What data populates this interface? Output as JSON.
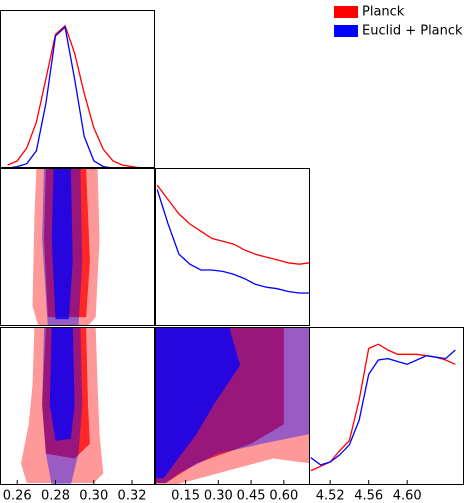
{
  "chart_data": [
    {
      "type": "line",
      "xlim": [
        0.251,
        0.332
      ],
      "ylim": [
        0,
        1.1
      ],
      "series": [
        {
          "name": "Planck",
          "color": "#ff0000",
          "x": [
            0.255,
            0.26,
            0.265,
            0.27,
            0.275,
            0.28,
            0.285,
            0.29,
            0.295,
            0.3,
            0.305,
            0.31,
            0.315,
            0.32,
            0.325,
            0.33
          ],
          "values": [
            0.02,
            0.05,
            0.14,
            0.32,
            0.62,
            0.93,
            0.99,
            0.8,
            0.52,
            0.28,
            0.13,
            0.05,
            0.02,
            0.01,
            0,
            0
          ]
        },
        {
          "name": "Euclid + Planck",
          "color": "#0000ff",
          "x": [
            0.255,
            0.26,
            0.265,
            0.27,
            0.275,
            0.28,
            0.285,
            0.29,
            0.295,
            0.3,
            0.305,
            0.31,
            0.315,
            0.32,
            0.325,
            0.33
          ],
          "values": [
            0,
            0.01,
            0.03,
            0.12,
            0.45,
            0.92,
            0.98,
            0.62,
            0.22,
            0.05,
            0.01,
            0,
            0,
            0,
            0,
            0
          ]
        }
      ]
    },
    {
      "type": "contour",
      "xlim": [
        0.251,
        0.332
      ],
      "ylim": [
        0.01,
        0.72
      ],
      "series": [
        {
          "color": "#ff0000",
          "levels": [
            {
              "x": [
                0.27,
                0.302,
                0.303,
                0.301,
                0.297,
                0.271,
                0.268,
                0.269
              ],
              "y": [
                0.72,
                0.72,
                0.4,
                0.05,
                0.01,
                0.01,
                0.1,
                0.5
              ]
            },
            {
              "x": [
                0.275,
                0.296,
                0.298,
                0.296,
                0.276,
                0.274
              ],
              "y": [
                0.72,
                0.72,
                0.3,
                0.05,
                0.05,
                0.4
              ]
            }
          ]
        },
        {
          "color": "#0000ff",
          "levels": [
            {
              "x": [
                0.274,
                0.293,
                0.294,
                0.292,
                0.276,
                0.273
              ],
              "y": [
                0.72,
                0.72,
                0.3,
                0.01,
                0.01,
                0.4
              ]
            },
            {
              "x": [
                0.279,
                0.288,
                0.289,
                0.287,
                0.28,
                0.278
              ],
              "y": [
                0.72,
                0.72,
                0.3,
                0.04,
                0.04,
                0.4
              ]
            }
          ]
        }
      ]
    },
    {
      "type": "line",
      "xlim": [
        0.01,
        0.72
      ],
      "ylim": [
        0,
        1.1
      ],
      "series": [
        {
          "color": "#ff0000",
          "x": [
            0.02,
            0.07,
            0.12,
            0.17,
            0.22,
            0.27,
            0.32,
            0.37,
            0.42,
            0.47,
            0.52,
            0.57,
            0.62,
            0.67,
            0.72
          ],
          "values": [
            0.98,
            0.88,
            0.78,
            0.71,
            0.66,
            0.61,
            0.59,
            0.57,
            0.53,
            0.5,
            0.48,
            0.46,
            0.44,
            0.43,
            0.44
          ]
        },
        {
          "color": "#0000ff",
          "x": [
            0.02,
            0.07,
            0.12,
            0.17,
            0.22,
            0.27,
            0.32,
            0.37,
            0.42,
            0.47,
            0.52,
            0.57,
            0.62,
            0.67,
            0.72
          ],
          "values": [
            0.95,
            0.71,
            0.5,
            0.43,
            0.39,
            0.39,
            0.38,
            0.36,
            0.33,
            0.29,
            0.27,
            0.26,
            0.24,
            0.23,
            0.23
          ]
        }
      ]
    },
    {
      "type": "contour",
      "xlim": [
        0.251,
        0.332
      ],
      "ylim": [
        4.498,
        4.659
      ],
      "xticks": [
        0.26,
        0.28,
        {
          "value": 0.3,
          "label": "0.30"
        },
        0.32
      ],
      "series": [
        {
          "color": "#ff0000",
          "levels": [
            {
              "x": [
                0.269,
                0.301,
                0.302,
                0.303,
                0.305,
                0.3,
                0.265,
                0.262,
                0.266,
                0.268
              ],
              "y": [
                4.659,
                4.659,
                4.6,
                4.55,
                4.51,
                4.5,
                4.5,
                4.52,
                4.56,
                4.6
              ]
            },
            {
              "x": [
                0.275,
                0.296,
                0.297,
                0.298,
                0.29,
                0.275,
                0.273
              ],
              "y": [
                4.659,
                4.659,
                4.58,
                4.54,
                4.525,
                4.53,
                4.58
              ]
            }
          ]
        },
        {
          "color": "#0000ff",
          "levels": [
            {
              "x": [
                0.274,
                0.293,
                0.294,
                0.292,
                0.288,
                0.278,
                0.275,
                0.273
              ],
              "y": [
                4.659,
                4.659,
                4.58,
                4.53,
                4.498,
                4.498,
                4.53,
                4.58
              ]
            },
            {
              "x": [
                0.278,
                0.289,
                0.29,
                0.288,
                0.28,
                0.277
              ],
              "y": [
                4.659,
                4.659,
                4.58,
                4.545,
                4.543,
                4.58
              ]
            }
          ]
        }
      ]
    },
    {
      "type": "contour",
      "xlim": [
        0.01,
        0.72
      ],
      "ylim": [
        4.498,
        4.659
      ],
      "xticks": [
        0.15,
        {
          "value": 0.3,
          "label": "0.30"
        },
        0.45,
        {
          "value": 0.6,
          "label": "0.60"
        }
      ],
      "series": [
        {
          "color": "#ff0000",
          "levels": [
            {
              "x": [
                0.01,
                0.72,
                0.72,
                0.55,
                0.3,
                0.1,
                0.01
              ],
              "y": [
                4.659,
                4.659,
                4.52,
                4.525,
                4.51,
                4.498,
                4.498
              ]
            },
            {
              "x": [
                0.01,
                0.6,
                0.6,
                0.45,
                0.2,
                0.06,
                0.01
              ],
              "y": [
                4.659,
                4.659,
                4.56,
                4.54,
                4.52,
                4.5,
                4.5
              ]
            }
          ]
        },
        {
          "color": "#0000ff",
          "levels": [
            {
              "x": [
                0.01,
                0.72,
                0.72,
                0.5,
                0.3,
                0.12,
                0.06,
                0.01
              ],
              "y": [
                4.659,
                4.659,
                4.55,
                4.54,
                4.53,
                4.51,
                4.5,
                4.5
              ]
            },
            {
              "x": [
                0.01,
                0.35,
                0.4,
                0.28,
                0.2,
                0.1,
                0.05,
                0.01
              ],
              "y": [
                4.659,
                4.659,
                4.62,
                4.58,
                4.55,
                4.52,
                4.505,
                4.505
              ]
            }
          ]
        }
      ]
    },
    {
      "type": "line",
      "xlim": [
        4.498,
        4.659
      ],
      "ylim": [
        0,
        1.1
      ],
      "xticks": [
        4.52,
        4.56,
        {
          "value": 4.6,
          "label": "4.60"
        }
      ],
      "series": [
        {
          "color": "#ff0000",
          "x": [
            4.5,
            4.51,
            4.52,
            4.53,
            4.54,
            4.55,
            4.56,
            4.57,
            4.58,
            4.59,
            4.6,
            4.61,
            4.62,
            4.63,
            4.64,
            4.65
          ],
          "values": [
            0.1,
            0.13,
            0.16,
            0.24,
            0.31,
            0.59,
            0.95,
            0.98,
            0.94,
            0.91,
            0.91,
            0.91,
            0.9,
            0.89,
            0.87,
            0.84
          ]
        },
        {
          "color": "#0000ff",
          "x": [
            4.5,
            4.51,
            4.52,
            4.53,
            4.54,
            4.55,
            4.56,
            4.57,
            4.58,
            4.59,
            4.6,
            4.61,
            4.62,
            4.63,
            4.64,
            4.65
          ],
          "values": [
            0.19,
            0.14,
            0.16,
            0.21,
            0.28,
            0.45,
            0.77,
            0.87,
            0.88,
            0.86,
            0.84,
            0.87,
            0.9,
            0.89,
            0.88,
            0.94
          ]
        }
      ]
    }
  ]
}
